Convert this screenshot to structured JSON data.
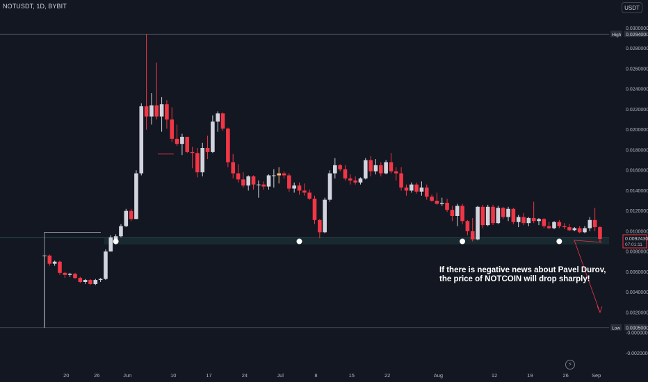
{
  "header": {
    "symbol_line": "NOTUSDT, 1D, BYBIT",
    "currency_button": "USDT"
  },
  "colors": {
    "background": "#131722",
    "up": "#d1d4dc",
    "up_highlight": "#f7b77f",
    "down": "#f23645",
    "support": "#1e3a3d",
    "annotation": "#ffffff"
  },
  "icons": {
    "replay": "lightning-icon"
  },
  "annotation": {
    "line1": "If there is negative news about Pavel Durov,",
    "line2": "the price of NOTCOIN will drop sharply!"
  },
  "chart_data": {
    "type": "candlestick",
    "title": "",
    "xlabel": "",
    "ylabel": "",
    "x_ticks": [
      "20",
      "26",
      "Jun",
      "10",
      "17",
      "24",
      "Jul",
      "8",
      "15",
      "22",
      "Aug",
      "12",
      "19",
      "26",
      "Sep"
    ],
    "y_ticks": [
      "0.0300000",
      "0.0280000",
      "0.0260000",
      "0.0240000",
      "0.0220000",
      "0.0200000",
      "0.0180000",
      "0.0160000",
      "0.0140000",
      "0.0120000",
      "0.0100000",
      "0.0080000",
      "0.0060000",
      "0.0040000",
      "0.0020000",
      "-0.0000000",
      "-0.0020000"
    ],
    "ylim": [
      -0.0025,
      0.0315
    ],
    "grid": false,
    "high_label": {
      "label": "High",
      "value": "0.0294000",
      "y": 0.0294
    },
    "low_label": {
      "label": "Low",
      "value": "0.0005000",
      "y": 0.0005
    },
    "last_price": {
      "value": "0.0092430",
      "countdown": "07:01:11",
      "y": 0.009243
    },
    "support_zone": [
      0.0087,
      0.0093
    ],
    "touch_points": [
      "2024-05-30",
      "2024-07-05",
      "2024-08-06",
      "2024-08-25"
    ],
    "candles": [
      {
        "date": "2024-05-16",
        "o": 0.0076,
        "h": 0.0076,
        "l": 0.0005,
        "c": 0.0076
      },
      {
        "date": "2024-05-17",
        "o": 0.0076,
        "h": 0.0077,
        "l": 0.0066,
        "c": 0.0068
      },
      {
        "date": "2024-05-18",
        "o": 0.0068,
        "h": 0.0071,
        "l": 0.0066,
        "c": 0.007
      },
      {
        "date": "2024-05-19",
        "o": 0.007,
        "h": 0.0071,
        "l": 0.0057,
        "c": 0.0059
      },
      {
        "date": "2024-05-20",
        "o": 0.0059,
        "h": 0.006,
        "l": 0.0054,
        "c": 0.0057
      },
      {
        "date": "2024-05-21",
        "o": 0.0057,
        "h": 0.0059,
        "l": 0.0055,
        "c": 0.0058
      },
      {
        "date": "2024-05-22",
        "o": 0.0058,
        "h": 0.0059,
        "l": 0.0053,
        "c": 0.0054
      },
      {
        "date": "2024-05-23",
        "o": 0.0054,
        "h": 0.0055,
        "l": 0.0049,
        "c": 0.005
      },
      {
        "date": "2024-05-24",
        "o": 0.005,
        "h": 0.0053,
        "l": 0.0048,
        "c": 0.0052
      },
      {
        "date": "2024-05-25",
        "o": 0.0052,
        "h": 0.0053,
        "l": 0.0047,
        "c": 0.0048
      },
      {
        "date": "2024-05-26",
        "o": 0.0048,
        "h": 0.0053,
        "l": 0.0047,
        "c": 0.0052
      },
      {
        "date": "2024-05-27",
        "o": 0.0052,
        "h": 0.0054,
        "l": 0.005,
        "c": 0.0053
      },
      {
        "date": "2024-05-28",
        "o": 0.0053,
        "h": 0.0082,
        "l": 0.0052,
        "c": 0.008
      },
      {
        "date": "2024-05-29",
        "o": 0.008,
        "h": 0.0096,
        "l": 0.008,
        "c": 0.0094
      },
      {
        "date": "2024-05-30",
        "o": 0.0092,
        "h": 0.0097,
        "l": 0.0087,
        "c": 0.0095
      },
      {
        "date": "2024-05-31",
        "o": 0.0095,
        "h": 0.0107,
        "l": 0.0094,
        "c": 0.0105
      },
      {
        "date": "2024-06-01",
        "o": 0.0105,
        "h": 0.0122,
        "l": 0.0104,
        "c": 0.012
      },
      {
        "date": "2024-06-02",
        "o": 0.012,
        "h": 0.0122,
        "l": 0.011,
        "c": 0.0112
      },
      {
        "date": "2024-06-03",
        "o": 0.0112,
        "h": 0.016,
        "l": 0.0112,
        "c": 0.0157
      },
      {
        "date": "2024-06-04",
        "o": 0.0157,
        "h": 0.0226,
        "l": 0.0155,
        "c": 0.0223
      },
      {
        "date": "2024-06-05",
        "o": 0.0223,
        "h": 0.0294,
        "l": 0.02,
        "c": 0.0213
      },
      {
        "date": "2024-06-06",
        "o": 0.0213,
        "h": 0.0236,
        "l": 0.0205,
        "c": 0.0224
      },
      {
        "date": "2024-06-07",
        "o": 0.0224,
        "h": 0.0266,
        "l": 0.021,
        "c": 0.0213
      },
      {
        "date": "2024-06-08",
        "o": 0.0213,
        "h": 0.0232,
        "l": 0.0198,
        "c": 0.0225
      },
      {
        "date": "2024-06-09",
        "o": 0.0225,
        "h": 0.0229,
        "l": 0.0201,
        "c": 0.021
      },
      {
        "date": "2024-06-10",
        "o": 0.021,
        "h": 0.0222,
        "l": 0.0188,
        "c": 0.0191
      },
      {
        "date": "2024-06-11",
        "o": 0.0191,
        "h": 0.0205,
        "l": 0.0184,
        "c": 0.0186
      },
      {
        "date": "2024-06-12",
        "o": 0.0186,
        "h": 0.0196,
        "l": 0.0175,
        "c": 0.0193
      },
      {
        "date": "2024-06-13",
        "o": 0.0193,
        "h": 0.0193,
        "l": 0.0177,
        "c": 0.0178
      },
      {
        "date": "2024-06-14",
        "o": 0.0178,
        "h": 0.0183,
        "l": 0.0162,
        "c": 0.0177
      },
      {
        "date": "2024-06-15",
        "o": 0.0177,
        "h": 0.0182,
        "l": 0.0153,
        "c": 0.0158
      },
      {
        "date": "2024-06-16",
        "o": 0.0158,
        "h": 0.0187,
        "l": 0.0154,
        "c": 0.0182
      },
      {
        "date": "2024-06-17",
        "o": 0.0182,
        "h": 0.0194,
        "l": 0.0171,
        "c": 0.0178
      },
      {
        "date": "2024-06-18",
        "o": 0.0178,
        "h": 0.0214,
        "l": 0.0177,
        "c": 0.0208
      },
      {
        "date": "2024-06-19",
        "o": 0.0208,
        "h": 0.0218,
        "l": 0.0198,
        "c": 0.0216
      },
      {
        "date": "2024-06-20",
        "o": 0.0216,
        "h": 0.0217,
        "l": 0.0199,
        "c": 0.0201
      },
      {
        "date": "2024-06-21",
        "o": 0.0201,
        "h": 0.0202,
        "l": 0.0163,
        "c": 0.0168
      },
      {
        "date": "2024-06-22",
        "o": 0.0168,
        "h": 0.0176,
        "l": 0.0152,
        "c": 0.0157
      },
      {
        "date": "2024-06-23",
        "o": 0.0157,
        "h": 0.0166,
        "l": 0.0148,
        "c": 0.0151
      },
      {
        "date": "2024-06-24",
        "o": 0.0151,
        "h": 0.0158,
        "l": 0.0143,
        "c": 0.0145
      },
      {
        "date": "2024-06-25",
        "o": 0.0145,
        "h": 0.0155,
        "l": 0.014,
        "c": 0.0154
      },
      {
        "date": "2024-06-26",
        "o": 0.0154,
        "h": 0.0155,
        "l": 0.0141,
        "c": 0.0146
      },
      {
        "date": "2024-06-27",
        "o": 0.0146,
        "h": 0.015,
        "l": 0.0133,
        "c": 0.0146
      },
      {
        "date": "2024-06-28",
        "o": 0.0146,
        "h": 0.0149,
        "l": 0.0141,
        "c": 0.0144
      },
      {
        "date": "2024-06-29",
        "o": 0.0144,
        "h": 0.0156,
        "l": 0.0141,
        "c": 0.0155
      },
      {
        "date": "2024-06-30",
        "o": 0.0155,
        "h": 0.0161,
        "l": 0.0143,
        "c": 0.0155
      },
      {
        "date": "2024-07-01",
        "o": 0.0155,
        "h": 0.0163,
        "l": 0.0147,
        "c": 0.0157
      },
      {
        "date": "2024-07-02",
        "o": 0.0157,
        "h": 0.0159,
        "l": 0.0152,
        "c": 0.0155
      },
      {
        "date": "2024-07-03",
        "o": 0.0155,
        "h": 0.0157,
        "l": 0.0139,
        "c": 0.0142
      },
      {
        "date": "2024-07-04",
        "o": 0.0142,
        "h": 0.0148,
        "l": 0.0138,
        "c": 0.0145
      },
      {
        "date": "2024-07-05",
        "o": 0.0145,
        "h": 0.0148,
        "l": 0.0136,
        "c": 0.014
      },
      {
        "date": "2024-07-06",
        "o": 0.014,
        "h": 0.0147,
        "l": 0.0135,
        "c": 0.0138
      },
      {
        "date": "2024-07-07",
        "o": 0.0138,
        "h": 0.0141,
        "l": 0.0131,
        "c": 0.0132
      },
      {
        "date": "2024-07-08",
        "o": 0.0132,
        "h": 0.0135,
        "l": 0.0107,
        "c": 0.0111
      },
      {
        "date": "2024-07-09",
        "o": 0.0111,
        "h": 0.0112,
        "l": 0.0093,
        "c": 0.0099
      },
      {
        "date": "2024-07-10",
        "o": 0.0099,
        "h": 0.0133,
        "l": 0.0098,
        "c": 0.0131
      },
      {
        "date": "2024-07-11",
        "o": 0.0131,
        "h": 0.016,
        "l": 0.0129,
        "c": 0.0157
      },
      {
        "date": "2024-07-12",
        "o": 0.0157,
        "h": 0.0172,
        "l": 0.0152,
        "c": 0.0165
      },
      {
        "date": "2024-07-13",
        "o": 0.0165,
        "h": 0.0166,
        "l": 0.0159,
        "c": 0.0161
      },
      {
        "date": "2024-07-14",
        "o": 0.0161,
        "h": 0.0165,
        "l": 0.015,
        "c": 0.0152
      },
      {
        "date": "2024-07-15",
        "o": 0.0152,
        "h": 0.0156,
        "l": 0.0146,
        "c": 0.015
      },
      {
        "date": "2024-07-16",
        "o": 0.015,
        "h": 0.0154,
        "l": 0.0146,
        "c": 0.0148
      },
      {
        "date": "2024-07-17",
        "o": 0.0148,
        "h": 0.0153,
        "l": 0.0146,
        "c": 0.0152
      },
      {
        "date": "2024-07-18",
        "o": 0.0152,
        "h": 0.0172,
        "l": 0.0151,
        "c": 0.017
      },
      {
        "date": "2024-07-19",
        "o": 0.017,
        "h": 0.0174,
        "l": 0.0154,
        "c": 0.0159
      },
      {
        "date": "2024-07-20",
        "o": 0.0159,
        "h": 0.0171,
        "l": 0.0156,
        "c": 0.0165
      },
      {
        "date": "2024-07-21",
        "o": 0.0165,
        "h": 0.0168,
        "l": 0.0154,
        "c": 0.0157
      },
      {
        "date": "2024-07-22",
        "o": 0.0157,
        "h": 0.017,
        "l": 0.0156,
        "c": 0.0168
      },
      {
        "date": "2024-07-23",
        "o": 0.0168,
        "h": 0.0177,
        "l": 0.0157,
        "c": 0.0159
      },
      {
        "date": "2024-07-24",
        "o": 0.0159,
        "h": 0.0163,
        "l": 0.015,
        "c": 0.0157
      },
      {
        "date": "2024-07-25",
        "o": 0.0157,
        "h": 0.0163,
        "l": 0.014,
        "c": 0.0143
      },
      {
        "date": "2024-07-26",
        "o": 0.0143,
        "h": 0.0146,
        "l": 0.0135,
        "c": 0.014
      },
      {
        "date": "2024-07-27",
        "o": 0.014,
        "h": 0.0148,
        "l": 0.0138,
        "c": 0.0146
      },
      {
        "date": "2024-07-28",
        "o": 0.0146,
        "h": 0.0148,
        "l": 0.0137,
        "c": 0.0139
      },
      {
        "date": "2024-07-29",
        "o": 0.0139,
        "h": 0.0149,
        "l": 0.0135,
        "c": 0.0143
      },
      {
        "date": "2024-07-30",
        "o": 0.0143,
        "h": 0.0146,
        "l": 0.0131,
        "c": 0.0134
      },
      {
        "date": "2024-07-31",
        "o": 0.0134,
        "h": 0.0136,
        "l": 0.0129,
        "c": 0.013
      },
      {
        "date": "2024-08-01",
        "o": 0.013,
        "h": 0.0138,
        "l": 0.0126,
        "c": 0.0127
      },
      {
        "date": "2024-08-02",
        "o": 0.0127,
        "h": 0.0133,
        "l": 0.0125,
        "c": 0.0128
      },
      {
        "date": "2024-08-03",
        "o": 0.0128,
        "h": 0.0132,
        "l": 0.0119,
        "c": 0.0121
      },
      {
        "date": "2024-08-04",
        "o": 0.0121,
        "h": 0.0125,
        "l": 0.011,
        "c": 0.0115
      },
      {
        "date": "2024-08-05",
        "o": 0.0115,
        "h": 0.0127,
        "l": 0.0105,
        "c": 0.0125
      },
      {
        "date": "2024-08-06",
        "o": 0.0125,
        "h": 0.0127,
        "l": 0.0107,
        "c": 0.011
      },
      {
        "date": "2024-08-07",
        "o": 0.011,
        "h": 0.0111,
        "l": 0.0096,
        "c": 0.01
      },
      {
        "date": "2024-08-08",
        "o": 0.01,
        "h": 0.0113,
        "l": 0.009,
        "c": 0.0092
      },
      {
        "date": "2024-08-09",
        "o": 0.0092,
        "h": 0.0125,
        "l": 0.0091,
        "c": 0.0124
      },
      {
        "date": "2024-08-10",
        "o": 0.0124,
        "h": 0.0126,
        "l": 0.0103,
        "c": 0.0106
      },
      {
        "date": "2024-08-11",
        "o": 0.0106,
        "h": 0.0126,
        "l": 0.0105,
        "c": 0.0124
      },
      {
        "date": "2024-08-12",
        "o": 0.0124,
        "h": 0.0126,
        "l": 0.0106,
        "c": 0.0108
      },
      {
        "date": "2024-08-13",
        "o": 0.0108,
        "h": 0.0125,
        "l": 0.0107,
        "c": 0.0123
      },
      {
        "date": "2024-08-14",
        "o": 0.0123,
        "h": 0.0124,
        "l": 0.0112,
        "c": 0.0114
      },
      {
        "date": "2024-08-15",
        "o": 0.0114,
        "h": 0.0124,
        "l": 0.011,
        "c": 0.0122
      },
      {
        "date": "2024-08-16",
        "o": 0.0122,
        "h": 0.0123,
        "l": 0.0107,
        "c": 0.0109
      },
      {
        "date": "2024-08-17",
        "o": 0.0109,
        "h": 0.0116,
        "l": 0.0104,
        "c": 0.0114
      },
      {
        "date": "2024-08-18",
        "o": 0.0114,
        "h": 0.0118,
        "l": 0.0106,
        "c": 0.0108
      },
      {
        "date": "2024-08-19",
        "o": 0.0108,
        "h": 0.0114,
        "l": 0.0105,
        "c": 0.0113
      },
      {
        "date": "2024-08-20",
        "o": 0.0113,
        "h": 0.0129,
        "l": 0.0108,
        "c": 0.011
      },
      {
        "date": "2024-08-21",
        "o": 0.011,
        "h": 0.0113,
        "l": 0.0106,
        "c": 0.0112
      },
      {
        "date": "2024-08-22",
        "o": 0.0112,
        "h": 0.0113,
        "l": 0.0103,
        "c": 0.0105
      },
      {
        "date": "2024-08-23",
        "o": 0.0105,
        "h": 0.0109,
        "l": 0.0102,
        "c": 0.0103
      },
      {
        "date": "2024-08-24",
        "o": 0.0103,
        "h": 0.011,
        "l": 0.0102,
        "c": 0.0109
      },
      {
        "date": "2024-08-25",
        "o": 0.0109,
        "h": 0.0111,
        "l": 0.0103,
        "c": 0.0105
      },
      {
        "date": "2024-08-26",
        "o": 0.0105,
        "h": 0.0108,
        "l": 0.0102,
        "c": 0.0104
      },
      {
        "date": "2024-08-27",
        "o": 0.0104,
        "h": 0.0107,
        "l": 0.01,
        "c": 0.0101
      },
      {
        "date": "2024-08-28",
        "o": 0.0101,
        "h": 0.0104,
        "l": 0.01,
        "c": 0.0103
      },
      {
        "date": "2024-08-29",
        "o": 0.0103,
        "h": 0.0105,
        "l": 0.0098,
        "c": 0.0099
      },
      {
        "date": "2024-08-30",
        "o": 0.0099,
        "h": 0.0105,
        "l": 0.0098,
        "c": 0.0103
      },
      {
        "date": "2024-08-31",
        "o": 0.0103,
        "h": 0.0114,
        "l": 0.01,
        "c": 0.0111
      },
      {
        "date": "2024-09-01",
        "o": 0.0111,
        "h": 0.0123,
        "l": 0.01,
        "c": 0.0104
      },
      {
        "date": "2024-09-02",
        "o": 0.0104,
        "h": 0.0105,
        "l": 0.0089,
        "c": 0.00924
      }
    ]
  }
}
